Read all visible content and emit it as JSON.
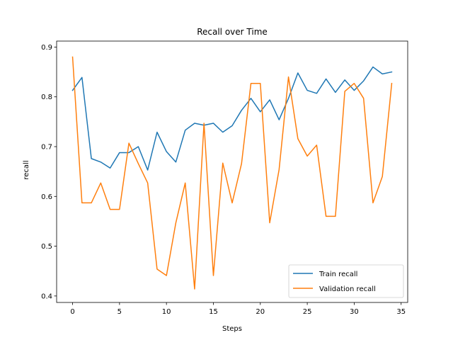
{
  "chart_data": {
    "type": "line",
    "title": "Recall over Time",
    "xlabel": "Steps",
    "ylabel": "recall",
    "xlim": [
      -1.7,
      35.7
    ],
    "ylim": [
      0.387,
      0.912
    ],
    "xticks": [
      0,
      5,
      10,
      15,
      20,
      25,
      30,
      35
    ],
    "yticks": [
      0.4,
      0.5,
      0.6,
      0.7,
      0.8,
      0.9
    ],
    "grid": false,
    "legend_position": "lower-right",
    "x": [
      0,
      1,
      2,
      3,
      4,
      5,
      6,
      7,
      8,
      9,
      10,
      11,
      12,
      13,
      14,
      15,
      16,
      17,
      18,
      19,
      20,
      21,
      22,
      23,
      24,
      25,
      26,
      27,
      28,
      29,
      30,
      31,
      32,
      33,
      34
    ],
    "series": [
      {
        "name": "Train recall",
        "color": "#1f77b4",
        "values": [
          0.813,
          0.839,
          0.676,
          0.669,
          0.657,
          0.688,
          0.688,
          0.7,
          0.653,
          0.729,
          0.69,
          0.669,
          0.733,
          0.747,
          0.743,
          0.747,
          0.729,
          0.742,
          0.773,
          0.797,
          0.77,
          0.794,
          0.754,
          0.797,
          0.848,
          0.813,
          0.807,
          0.836,
          0.809,
          0.834,
          0.813,
          0.832,
          0.86,
          0.846,
          0.85
        ]
      },
      {
        "name": "Validation recall",
        "color": "#ff7f0e",
        "values": [
          0.88,
          0.587,
          0.587,
          0.627,
          0.574,
          0.574,
          0.707,
          0.666,
          0.627,
          0.454,
          0.441,
          0.547,
          0.627,
          0.414,
          0.747,
          0.441,
          0.667,
          0.587,
          0.666,
          0.827,
          0.827,
          0.547,
          0.654,
          0.84,
          0.716,
          0.681,
          0.703,
          0.56,
          0.56,
          0.811,
          0.827,
          0.797,
          0.587,
          0.64,
          0.827
        ]
      }
    ]
  }
}
